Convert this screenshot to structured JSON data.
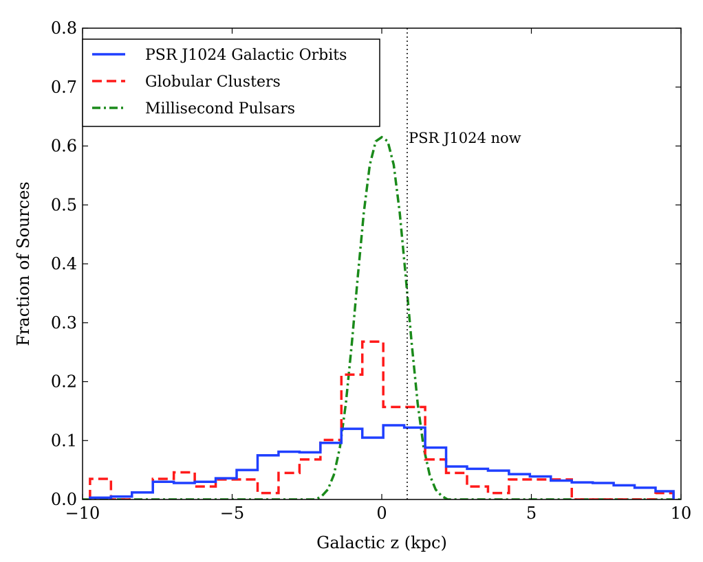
{
  "chart_data": {
    "type": "line",
    "title": "",
    "xlabel": "Galactic z (kpc)",
    "ylabel": "Fraction of Sources",
    "xlim": [
      -10,
      10
    ],
    "ylim": [
      0,
      0.8
    ],
    "xticks": [
      -10,
      -5,
      0,
      5,
      10
    ],
    "xtick_labels": [
      "−10",
      "−5",
      "0",
      "5",
      "10"
    ],
    "yticks": [
      0,
      0.1,
      0.2,
      0.3,
      0.4,
      0.5,
      0.6,
      0.7,
      0.8
    ],
    "ytick_labels": [
      "0.0",
      "0.1",
      "0.2",
      "0.3",
      "0.4",
      "0.5",
      "0.6",
      "0.7",
      "0.8"
    ],
    "grid": false,
    "legend_position": "top-left",
    "series": [
      {
        "name": "PSR J1024 Galactic Orbits",
        "style": "step",
        "color": "#1f3fff",
        "dash": "solid",
        "bin_edges": [
          -9.75,
          -9.05,
          -8.35,
          -7.65,
          -6.95,
          -6.25,
          -5.55,
          -4.85,
          -4.15,
          -3.45,
          -2.75,
          -2.05,
          -1.35,
          -0.65,
          0.05,
          0.75,
          1.45,
          2.15,
          2.85,
          3.55,
          4.25,
          4.95,
          5.65,
          6.35,
          7.05,
          7.75,
          8.45,
          9.15,
          9.75
        ],
        "values": [
          0.003,
          0.005,
          0.012,
          0.03,
          0.028,
          0.03,
          0.036,
          0.05,
          0.075,
          0.081,
          0.08,
          0.096,
          0.12,
          0.105,
          0.126,
          0.122,
          0.088,
          0.056,
          0.052,
          0.049,
          0.043,
          0.039,
          0.032,
          0.029,
          0.028,
          0.024,
          0.02,
          0.014
        ]
      },
      {
        "name": "Globular Clusters",
        "style": "step",
        "color": "#ff1a1a",
        "dash": "dashed",
        "bin_edges": [
          -9.75,
          -9.05,
          -8.35,
          -7.65,
          -6.95,
          -6.25,
          -5.55,
          -4.85,
          -4.15,
          -3.45,
          -2.75,
          -2.05,
          -1.35,
          -0.65,
          0.05,
          0.75,
          1.45,
          2.15,
          2.85,
          3.55,
          4.25,
          4.95,
          5.65,
          6.35,
          7.05,
          7.75,
          8.45,
          9.15,
          9.75
        ],
        "values": [
          0.035,
          0.0,
          0.012,
          0.035,
          0.046,
          0.022,
          0.034,
          0.034,
          0.011,
          0.045,
          0.068,
          0.101,
          0.212,
          0.268,
          0.157,
          0.157,
          0.068,
          0.045,
          0.022,
          0.011,
          0.034,
          0.034,
          0.034,
          0.0,
          0.0,
          0.0,
          0.0,
          0.011
        ]
      },
      {
        "name": "Millisecond Pulsars",
        "style": "curve",
        "color": "#1a8a1a",
        "dash": "dashdot",
        "x": [
          -2.2,
          -2.0,
          -1.8,
          -1.6,
          -1.4,
          -1.2,
          -1.0,
          -0.8,
          -0.6,
          -0.4,
          -0.2,
          0.0,
          0.2,
          0.4,
          0.6,
          0.8,
          1.0,
          1.2,
          1.4,
          1.6,
          1.8,
          2.0,
          2.2
        ],
        "y": [
          0.0,
          0.006,
          0.017,
          0.042,
          0.088,
          0.163,
          0.265,
          0.379,
          0.487,
          0.568,
          0.608,
          0.615,
          0.608,
          0.568,
          0.487,
          0.379,
          0.265,
          0.163,
          0.088,
          0.042,
          0.017,
          0.006,
          0.0
        ]
      }
    ],
    "annotations": [
      {
        "type": "vline",
        "x": 0.85,
        "style": "dotted",
        "label": "PSR J1024 now",
        "label_y": 0.61
      }
    ]
  }
}
